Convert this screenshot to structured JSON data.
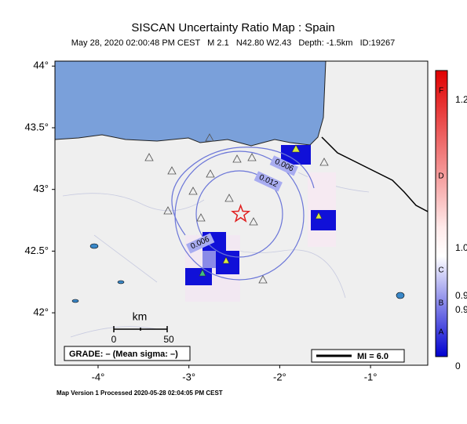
{
  "header": {
    "title": "SISCAN Uncertainty Ratio Map : Spain",
    "subtitle": "May 28, 2020 02:00:48 PM CEST   M 2.1   N42.80 W2.43   Depth: -1.5km   ID:19267"
  },
  "map": {
    "lon_range": [
      -4.475,
      -0.37
    ],
    "lat_range": [
      41.575,
      44.04
    ],
    "lat_ticks": [
      {
        "value": 44,
        "label": "44°"
      },
      {
        "value": 43.5,
        "label": "43.5°"
      },
      {
        "value": 43,
        "label": "43°"
      },
      {
        "value": 42.5,
        "label": "42.5°"
      },
      {
        "value": 42,
        "label": "42°"
      }
    ],
    "lon_ticks": [
      {
        "value": -4,
        "label": "-4°"
      },
      {
        "value": -3,
        "label": "-3°"
      },
      {
        "value": -2,
        "label": "-2°"
      },
      {
        "value": -1,
        "label": "-1°"
      }
    ],
    "epicenter": {
      "lon": -2.43,
      "lat": 42.8
    },
    "contour_labels": [
      "0.006",
      "0.012",
      "0.006"
    ],
    "scale_bar": {
      "unit": "km",
      "labels": [
        "0",
        "50"
      ]
    },
    "grade": "GRADE: – (Mean sigma: –)",
    "mi": "MI = 6.0"
  },
  "colorbar": {
    "labels": [
      "F",
      "1.2",
      "D",
      "1.0",
      "C",
      "0.9",
      "B",
      "0.9",
      "A",
      "0"
    ]
  },
  "footer": "Map Version 1 Processed 2020-05-28 02:04:05 PM CEST"
}
